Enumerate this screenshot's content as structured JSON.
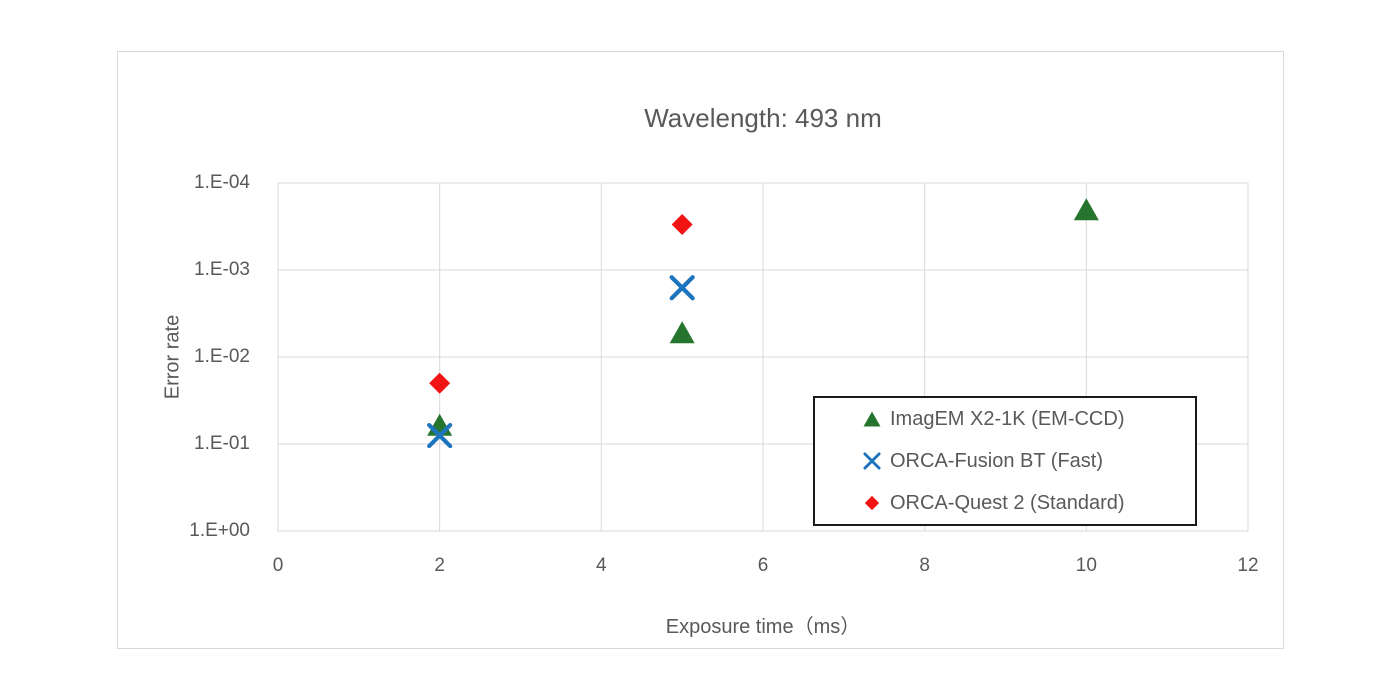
{
  "chart_data": {
    "type": "scatter",
    "title": "Wavelength: 493 nm",
    "xlabel": "Exposure time（ms）",
    "ylabel": "Error rate",
    "x_axis": {
      "min": 0,
      "max": 12,
      "ticks": [
        0,
        2,
        4,
        6,
        8,
        10,
        12
      ]
    },
    "y_axis": {
      "scale": "log",
      "direction": "inverted (1.E-04 at top, 1.E+00 at bottom)",
      "ticks": [
        {
          "label": "1.E-04",
          "value": 0.0001
        },
        {
          "label": "1.E-03",
          "value": 0.001
        },
        {
          "label": "1.E-02",
          "value": 0.01
        },
        {
          "label": "1.E-01",
          "value": 0.1
        },
        {
          "label": "1.E+00",
          "value": 1
        }
      ]
    },
    "grid": true,
    "legend_position": "inside lower-right, black-bordered box",
    "series": [
      {
        "name": "ImagEM X2-1K (EM-CCD)",
        "marker": "triangle",
        "color": "#26752f",
        "points": [
          {
            "x": 2,
            "y": 0.06
          },
          {
            "x": 5,
            "y": 0.0052
          },
          {
            "x": 10,
            "y": 0.0002
          }
        ]
      },
      {
        "name": "ORCA-Fusion BT (Fast)",
        "marker": "x",
        "color": "#1c73be",
        "points": [
          {
            "x": 2,
            "y": 0.08
          },
          {
            "x": 5,
            "y": 0.0016
          }
        ]
      },
      {
        "name": "ORCA-Quest 2 (Standard)",
        "marker": "diamond",
        "color": "#f01414",
        "points": [
          {
            "x": 2,
            "y": 0.02
          },
          {
            "x": 5,
            "y": 0.0003
          }
        ]
      }
    ],
    "colors": {
      "text": "#595959",
      "gridline": "#d9d9d9",
      "plot_border": "#d9d9d9",
      "chart_frame_border": "#d9d9d9",
      "legend_border": "#1a1a1a",
      "background": "#ffffff"
    }
  }
}
